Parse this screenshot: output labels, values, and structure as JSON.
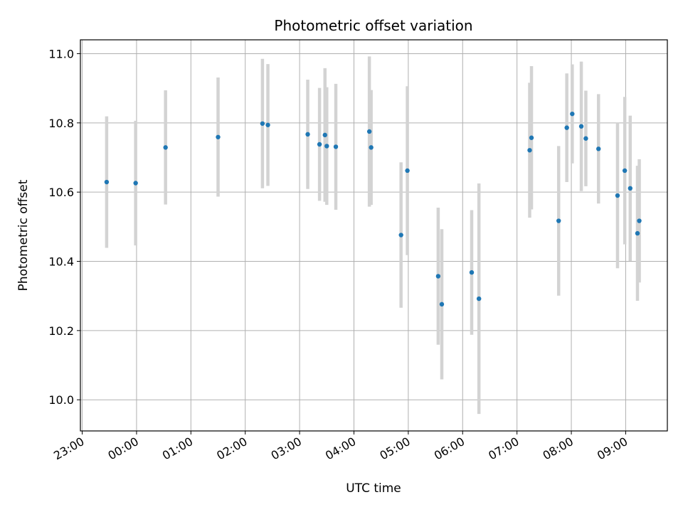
{
  "chart_data": {
    "type": "scatter",
    "title": "Photometric offset variation",
    "xlabel": "UTC time",
    "ylabel": "Photometric offset",
    "x_axis": "time",
    "xlim": [
      "22:58",
      "09:46"
    ],
    "ylim": [
      9.91,
      11.04
    ],
    "x_ticks": [
      "23:00",
      "00:00",
      "01:00",
      "02:00",
      "03:00",
      "04:00",
      "05:00",
      "06:00",
      "07:00",
      "08:00",
      "09:00"
    ],
    "y_ticks": [
      "10.0",
      "10.2",
      "10.4",
      "10.6",
      "10.8",
      "11.0"
    ],
    "grid": true,
    "point_color": "#1f77b4",
    "errorbar_color": "#d3d3d3",
    "points": [
      {
        "t": "23:27",
        "y": 10.629,
        "err": 0.19
      },
      {
        "t": "23:59",
        "y": 10.626,
        "err": 0.18
      },
      {
        "t": "00:32",
        "y": 10.729,
        "err": 0.165
      },
      {
        "t": "01:30",
        "y": 10.759,
        "err": 0.172
      },
      {
        "t": "02:19",
        "y": 10.798,
        "err": 0.187
      },
      {
        "t": "02:25",
        "y": 10.794,
        "err": 0.176
      },
      {
        "t": "03:09",
        "y": 10.767,
        "err": 0.158
      },
      {
        "t": "03:22",
        "y": 10.738,
        "err": 0.163
      },
      {
        "t": "03:28",
        "y": 10.765,
        "err": 0.193
      },
      {
        "t": "03:30",
        "y": 10.733,
        "err": 0.17
      },
      {
        "t": "03:40",
        "y": 10.731,
        "err": 0.182
      },
      {
        "t": "04:17",
        "y": 10.775,
        "err": 0.217
      },
      {
        "t": "04:19",
        "y": 10.729,
        "err": 0.166
      },
      {
        "t": "04:52",
        "y": 10.476,
        "err": 0.21
      },
      {
        "t": "04:59",
        "y": 10.662,
        "err": 0.244
      },
      {
        "t": "05:33",
        "y": 10.357,
        "err": 0.198
      },
      {
        "t": "05:37",
        "y": 10.276,
        "err": 0.217
      },
      {
        "t": "06:10",
        "y": 10.368,
        "err": 0.18
      },
      {
        "t": "06:18",
        "y": 10.292,
        "err": 0.333
      },
      {
        "t": "07:14",
        "y": 10.721,
        "err": 0.195
      },
      {
        "t": "07:16",
        "y": 10.757,
        "err": 0.207
      },
      {
        "t": "07:46",
        "y": 10.517,
        "err": 0.216
      },
      {
        "t": "07:55",
        "y": 10.786,
        "err": 0.157
      },
      {
        "t": "08:01",
        "y": 10.826,
        "err": 0.143
      },
      {
        "t": "08:11",
        "y": 10.79,
        "err": 0.187
      },
      {
        "t": "08:16",
        "y": 10.755,
        "err": 0.138
      },
      {
        "t": "08:30",
        "y": 10.725,
        "err": 0.158
      },
      {
        "t": "08:51",
        "y": 10.59,
        "err": 0.21
      },
      {
        "t": "08:59",
        "y": 10.662,
        "err": 0.213
      },
      {
        "t": "09:05",
        "y": 10.611,
        "err": 0.21
      },
      {
        "t": "09:13",
        "y": 10.481,
        "err": 0.195
      },
      {
        "t": "09:15",
        "y": 10.517,
        "err": 0.178
      }
    ]
  }
}
